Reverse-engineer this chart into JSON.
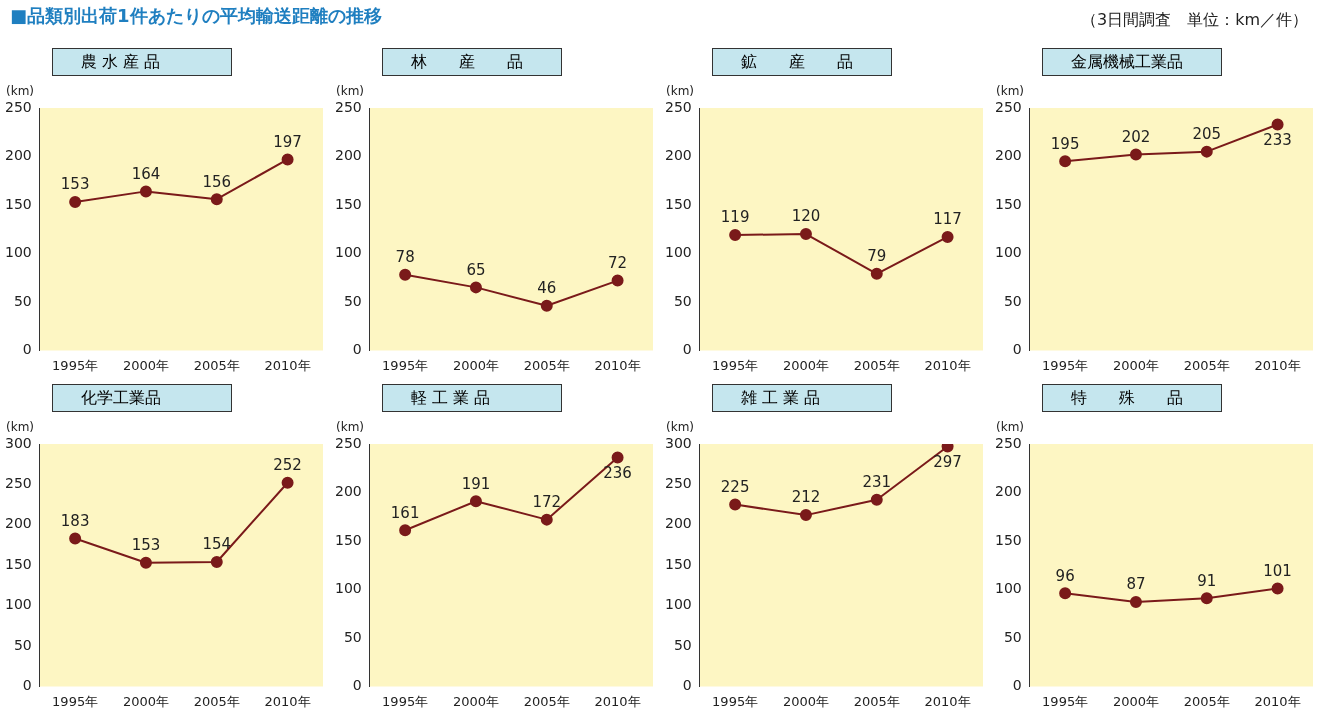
{
  "chart_data": [
    {
      "type": "line",
      "title": "農 水 産 品",
      "ylabel": "(km)",
      "annotations": [
        "■品類別出荷1件あたりの平均輸送距離の推移",
        "（3日間調査　単位：km／件）"
      ],
      "categories": [
        "1995年",
        "2000年",
        "2005年",
        "2010年"
      ],
      "values": [
        153,
        164,
        156,
        197
      ],
      "color": "#7a1a1a",
      "ylim": [
        0,
        250
      ],
      "yticks": [
        0,
        50,
        100,
        150,
        200,
        250
      ],
      "data_labels": true,
      "marker": "circle",
      "line_style": "solid"
    },
    {
      "type": "line",
      "title": "林　　産　　品",
      "ylabel": "(km)",
      "categories": [
        "1995年",
        "2000年",
        "2005年",
        "2010年"
      ],
      "values": [
        78,
        65,
        46,
        72
      ],
      "color": "#7a1a1a",
      "ylim": [
        0,
        250
      ],
      "yticks": [
        0,
        50,
        100,
        150,
        200,
        250
      ],
      "data_labels": true,
      "marker": "circle",
      "line_style": "solid"
    },
    {
      "type": "line",
      "title": "鉱　　産　　品",
      "ylabel": "(km)",
      "categories": [
        "1995年",
        "2000年",
        "2005年",
        "2010年"
      ],
      "values": [
        119,
        120,
        79,
        117
      ],
      "color": "#7a1a1a",
      "ylim": [
        0,
        250
      ],
      "yticks": [
        0,
        50,
        100,
        150,
        200,
        250
      ],
      "data_labels": true,
      "marker": "circle",
      "line_style": "solid"
    },
    {
      "type": "line",
      "title": "金属機械工業品",
      "ylabel": "(km)",
      "categories": [
        "1995年",
        "2000年",
        "2005年",
        "2010年"
      ],
      "values": [
        195,
        202,
        205,
        233
      ],
      "color": "#7a1a1a",
      "ylim": [
        0,
        250
      ],
      "yticks": [
        0,
        50,
        100,
        150,
        200,
        250
      ],
      "data_labels": true,
      "marker": "circle",
      "line_style": "solid"
    },
    {
      "type": "line",
      "title": "化学工業品",
      "ylabel": "(km)",
      "categories": [
        "1995年",
        "2000年",
        "2005年",
        "2010年"
      ],
      "values": [
        183,
        153,
        154,
        252
      ],
      "color": "#7a1a1a",
      "ylim": [
        0,
        300
      ],
      "yticks": [
        0,
        50,
        100,
        150,
        200,
        250,
        300
      ],
      "data_labels": true,
      "marker": "circle",
      "line_style": "solid"
    },
    {
      "type": "line",
      "title": "軽 工 業 品",
      "ylabel": "(km)",
      "categories": [
        "1995年",
        "2000年",
        "2005年",
        "2010年"
      ],
      "values": [
        161,
        191,
        172,
        236
      ],
      "color": "#7a1a1a",
      "ylim": [
        0,
        250
      ],
      "yticks": [
        0,
        50,
        100,
        150,
        200,
        250
      ],
      "data_labels": true,
      "marker": "circle",
      "line_style": "solid"
    },
    {
      "type": "line",
      "title": "雑 工 業 品",
      "ylabel": "(km)",
      "categories": [
        "1995年",
        "2000年",
        "2005年",
        "2010年"
      ],
      "values": [
        225,
        212,
        231,
        297
      ],
      "color": "#7a1a1a",
      "ylim": [
        0,
        300
      ],
      "yticks": [
        0,
        50,
        100,
        150,
        200,
        250,
        300
      ],
      "data_labels": true,
      "marker": "circle",
      "line_style": "solid"
    },
    {
      "type": "line",
      "title": "特　　殊　　品",
      "ylabel": "(km)",
      "categories": [
        "1995年",
        "2000年",
        "2005年",
        "2010年"
      ],
      "values": [
        96,
        87,
        91,
        101
      ],
      "color": "#7a1a1a",
      "ylim": [
        0,
        250
      ],
      "yticks": [
        0,
        50,
        100,
        150,
        200,
        250
      ],
      "data_labels": true,
      "marker": "circle",
      "line_style": "solid"
    }
  ]
}
